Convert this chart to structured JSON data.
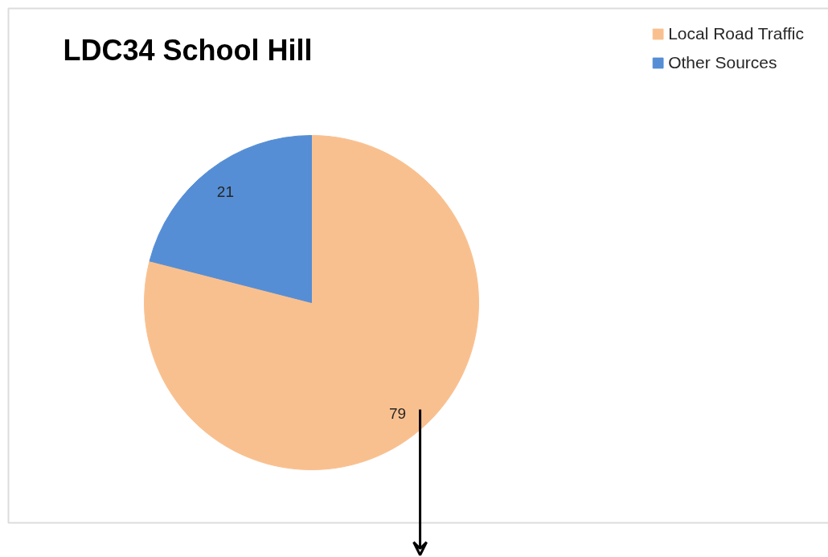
{
  "chart_data": {
    "type": "pie",
    "title": "LDC34 School Hill",
    "categories": [
      "Local Road Traffic",
      "Other Sources"
    ],
    "values": [
      79,
      21
    ],
    "colors": [
      "#f9c08f",
      "#558ed5"
    ],
    "data_labels": true,
    "legend": "top right"
  }
}
